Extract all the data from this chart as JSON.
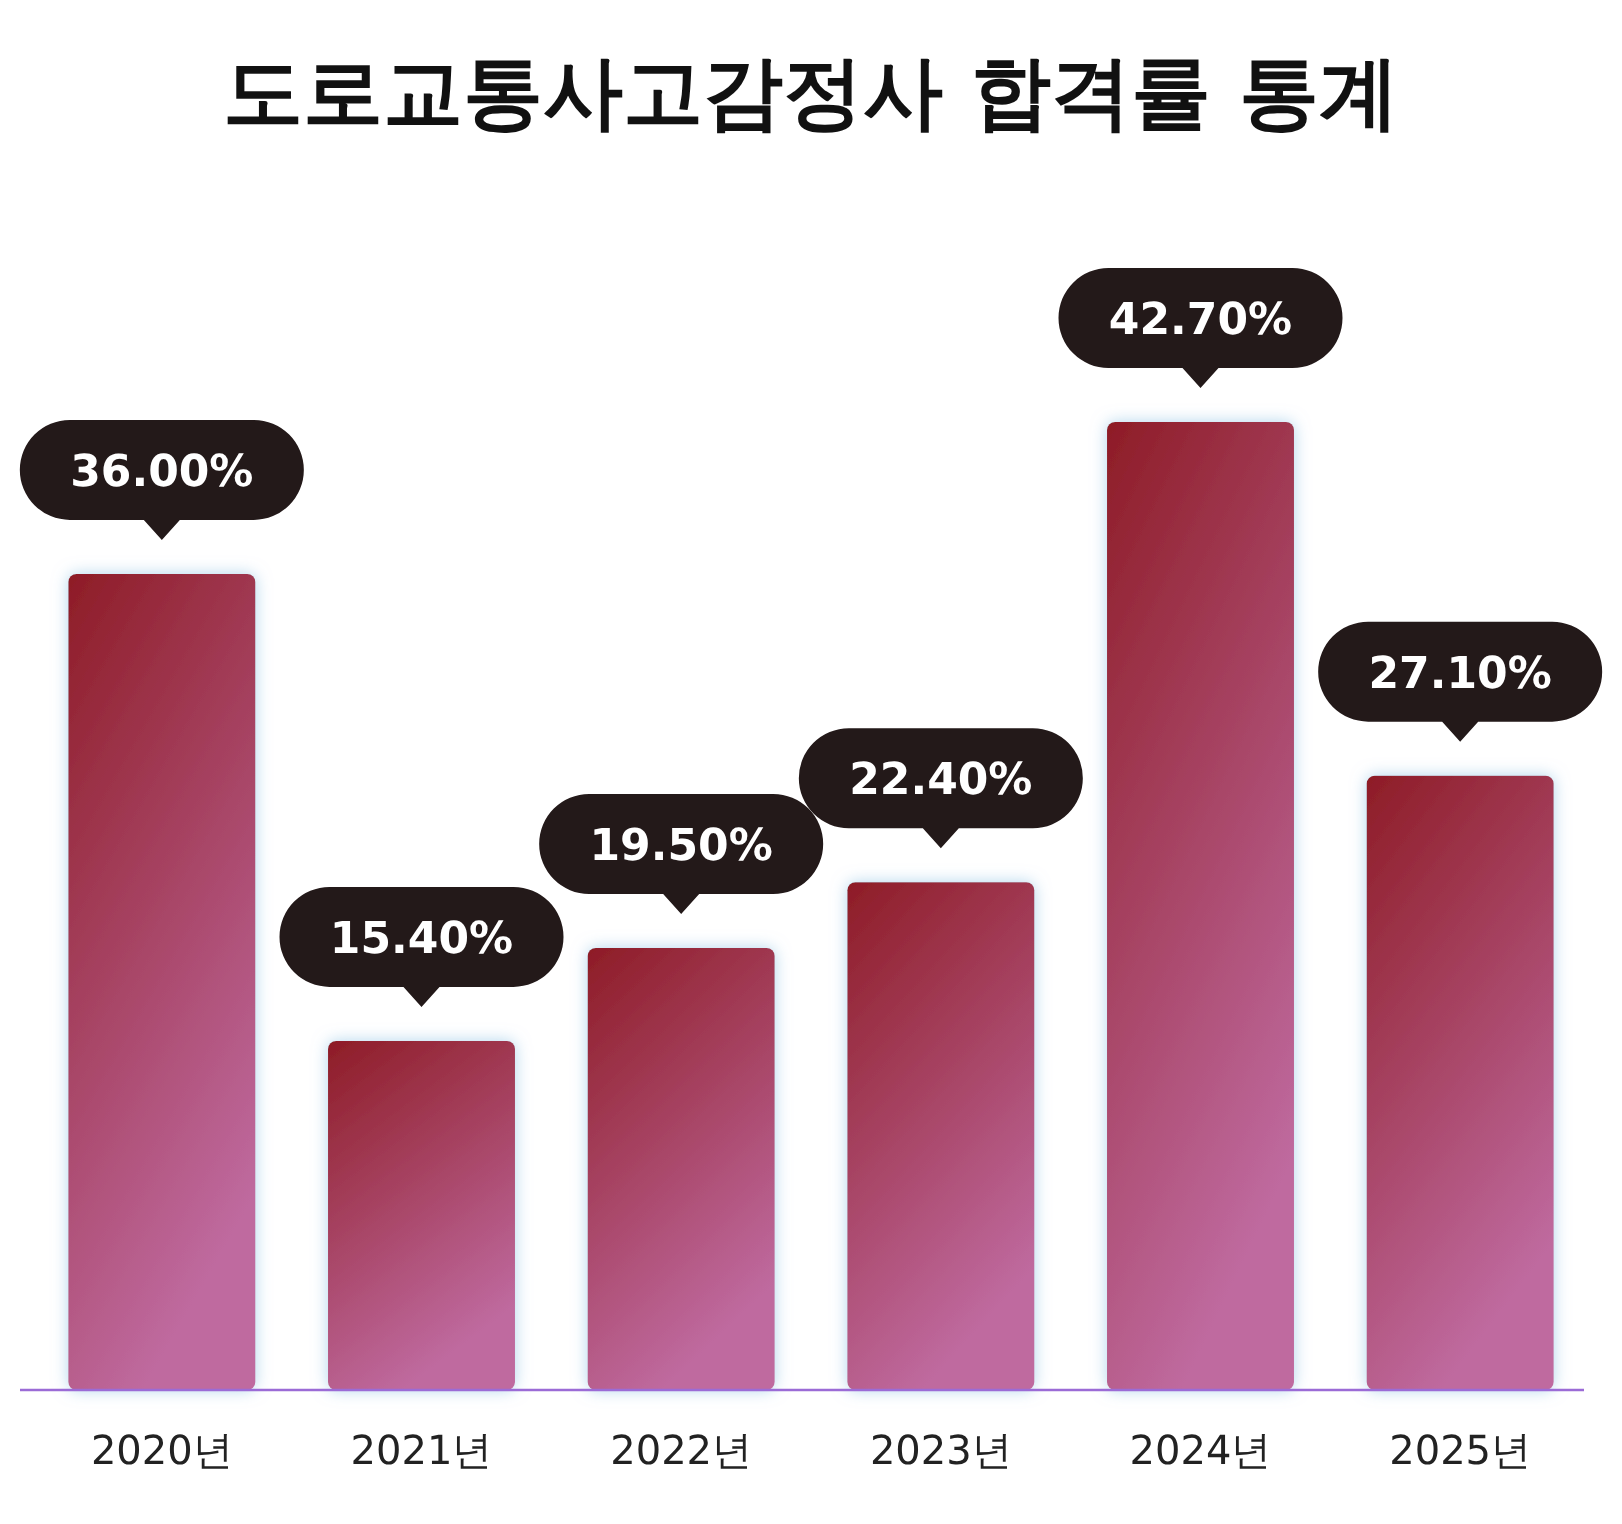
{
  "chart_data": {
    "type": "bar",
    "title": "도로교통사고감정사 합격률 통계",
    "categories": [
      "2020년",
      "2021년",
      "2022년",
      "2023년",
      "2024년",
      "2025년"
    ],
    "values": [
      36.0,
      15.4,
      19.5,
      22.4,
      42.7,
      27.1
    ],
    "value_labels": [
      "36.00%",
      "15.40%",
      "19.50%",
      "22.40%",
      "42.70%",
      "27.10%"
    ],
    "color": "#8e1c26"
  }
}
